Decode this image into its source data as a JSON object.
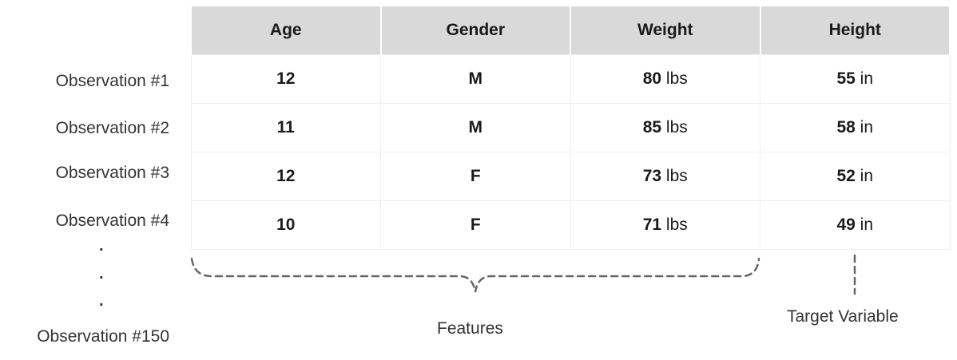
{
  "table": {
    "headers": [
      "Age",
      "Gender",
      "Weight",
      "Height"
    ],
    "rows": [
      {
        "label": "Observation #1",
        "age": "12",
        "gender": "M",
        "weight": "80",
        "weight_unit": "lbs",
        "height": "55",
        "height_unit": "in"
      },
      {
        "label": "Observation #2",
        "age": "11",
        "gender": "M",
        "weight": "85",
        "weight_unit": "lbs",
        "height": "58",
        "height_unit": "in"
      },
      {
        "label": "Observation #3",
        "age": "12",
        "gender": "F",
        "weight": "73",
        "weight_unit": "lbs",
        "height": "52",
        "height_unit": "in"
      },
      {
        "label": "Observation #4",
        "age": "10",
        "gender": "F",
        "weight": "71",
        "weight_unit": "lbs",
        "height": "49",
        "height_unit": "in"
      }
    ]
  },
  "ellipsis": ".",
  "last_row_label": "Observation #150",
  "annotations": {
    "features_label": "Features",
    "target_label": "Target Variable"
  },
  "colors": {
    "header_bg": "#d9d9d9",
    "bracket": "#666666"
  }
}
